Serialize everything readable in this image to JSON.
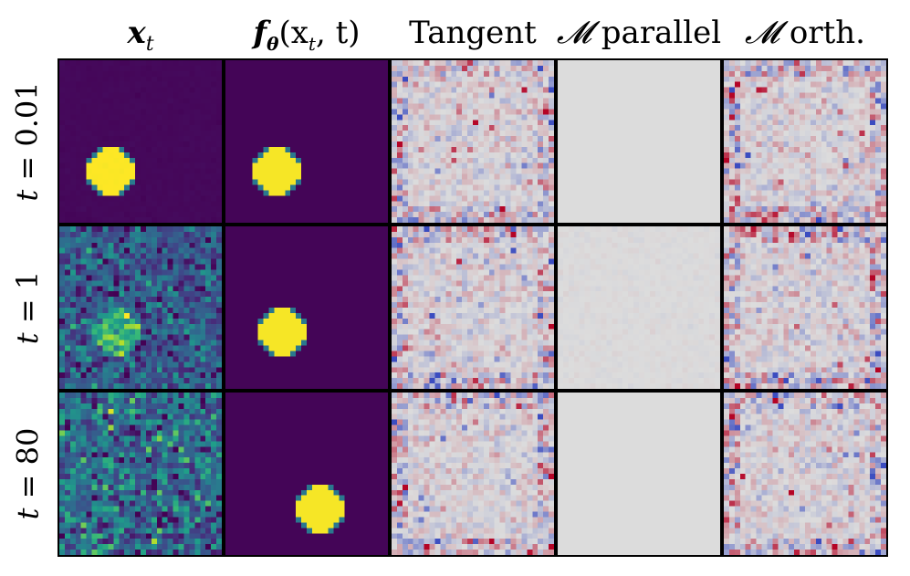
{
  "column_titles": [
    {
      "main": "x",
      "sub": "t",
      "kind": "bold-math"
    },
    {
      "main": "f",
      "sub": "θ",
      "arg": "(x",
      "arg_sub": "t",
      "arg_end": ", t)",
      "kind": "bold-func"
    },
    {
      "text": "Tangent",
      "kind": "plain"
    },
    {
      "script": "𝓜",
      "text": " parallel",
      "kind": "script"
    },
    {
      "script": "𝓜",
      "text": " orth.",
      "kind": "script"
    }
  ],
  "row_labels": [
    {
      "var": "t",
      "value": "= 0.01"
    },
    {
      "var": "t",
      "value": "= 1"
    },
    {
      "var": "t",
      "value": "= 80"
    }
  ],
  "panel_types": [
    "noisy-input",
    "denoised-output",
    "tangent-map",
    "parallel-map",
    "orthogonal-map"
  ],
  "noise_levels": [
    0.01,
    1,
    80
  ],
  "colors": {
    "viridis_low": "#440154",
    "viridis_high": "#fde725",
    "coolwarm_neutral": "#dcdcdc",
    "coolwarm_red": "#b40426",
    "coolwarm_blue": "#3b4cc0"
  }
}
